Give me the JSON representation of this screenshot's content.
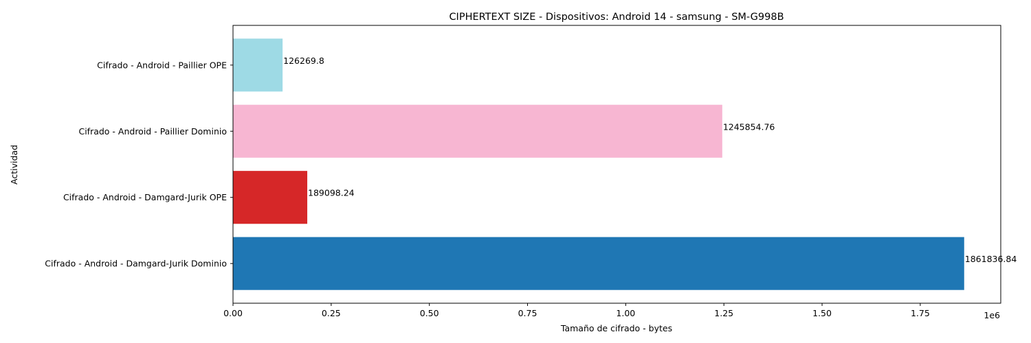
{
  "chart_data": {
    "type": "bar",
    "orientation": "horizontal",
    "title": "CIPHERTEXT SIZE - Dispositivos: Android 14 - samsung - SM-G998B",
    "xlabel": "Tamaño de cifrado - bytes",
    "ylabel": "Actividad",
    "x_multiplier_label": "1e6",
    "xlim": [
      0,
      1955000
    ],
    "x_ticks": [
      0,
      250000,
      500000,
      750000,
      1000000,
      1250000,
      1500000,
      1750000
    ],
    "x_tick_labels": [
      "0.00",
      "0.25",
      "0.50",
      "0.75",
      "1.00",
      "1.25",
      "1.50",
      "1.75"
    ],
    "grid": false,
    "categories": [
      "Cifrado - Android - Damgard-Jurik Dominio",
      "Cifrado - Android - Damgard-Jurik OPE",
      "Cifrado - Android - Paillier Dominio",
      "Cifrado - Android - Paillier OPE"
    ],
    "values": [
      1861836.84,
      189098.24,
      1245854.76,
      126269.8
    ],
    "value_labels": [
      "1861836.84",
      "189098.24",
      "1245854.76",
      "126269.8"
    ],
    "colors": [
      "#1f77b4",
      "#d62728",
      "#f7b6d2",
      "#9edae5"
    ]
  }
}
